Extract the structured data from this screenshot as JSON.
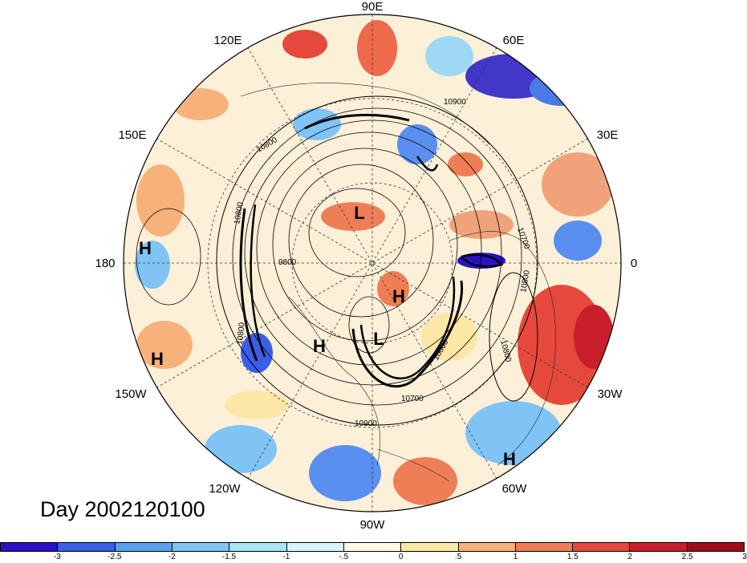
{
  "title": "Day 2002120100",
  "map": {
    "projection": "north-polar-stereographic",
    "longitude_labels": [
      "90E",
      "60E",
      "30E",
      "0",
      "30W",
      "60W",
      "90W",
      "120W",
      "150W",
      "180",
      "150E",
      "120E"
    ],
    "contour_labels": [
      "10900",
      "10800",
      "10700",
      "10800",
      "10800",
      "9800",
      "10800",
      "10700",
      "10800",
      "10900",
      "10800"
    ],
    "pressure_systems": [
      {
        "label": "L"
      },
      {
        "label": "L"
      },
      {
        "label": "H"
      },
      {
        "label": "H"
      },
      {
        "label": "H"
      },
      {
        "label": "H"
      },
      {
        "label": "H"
      }
    ]
  },
  "colorbar": {
    "colors": [
      "#2a10c8",
      "#3a5ee6",
      "#5aa0f0",
      "#7fc4f5",
      "#a8e3f7",
      "#d6f4fb",
      "#fffbe6",
      "#fde7a6",
      "#f6b27a",
      "#ee7e55",
      "#e5493c",
      "#c91f2a",
      "#a00e1e"
    ],
    "tick_labels": [
      "-3",
      "-2.5",
      "-2",
      "-1.5",
      "-1",
      "-.5",
      "0",
      ".5",
      "1",
      "1.5",
      "2",
      "2.5",
      "3"
    ]
  }
}
